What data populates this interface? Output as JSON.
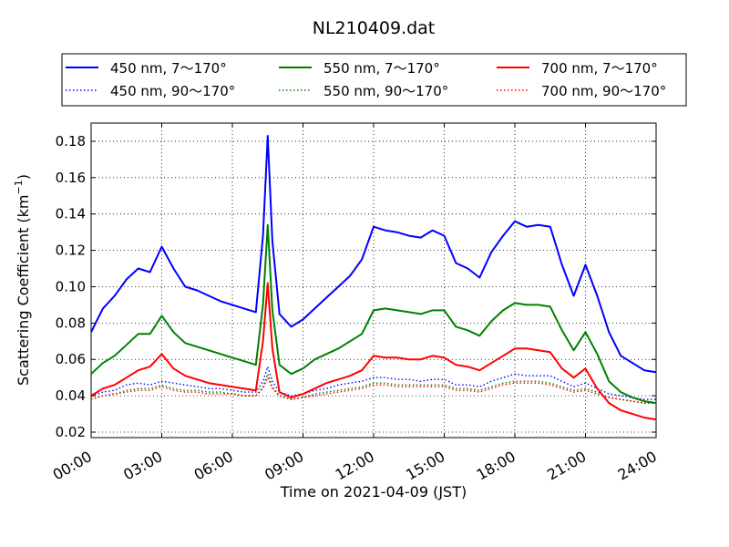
{
  "chart_data": {
    "type": "line",
    "title": "NL210409.dat",
    "xlabel": "Time on 2021-04-09 (JST)",
    "ylabel": "Scattering Coefficient (km",
    "ylabel_sup": "−1",
    "ylabel_close": ")",
    "xlim": [
      0,
      24
    ],
    "ylim": [
      0.017,
      0.19
    ],
    "xticks": [
      0,
      3,
      6,
      9,
      12,
      15,
      18,
      21,
      24
    ],
    "xtick_labels": [
      "00:00",
      "03:00",
      "06:00",
      "09:00",
      "12:00",
      "15:00",
      "18:00",
      "21:00",
      "24:00"
    ],
    "yticks": [
      0.02,
      0.04,
      0.06,
      0.08,
      0.1,
      0.12,
      0.14,
      0.16,
      0.18
    ],
    "ytick_labels": [
      "0.02",
      "0.04",
      "0.06",
      "0.08",
      "0.10",
      "0.12",
      "0.14",
      "0.16",
      "0.18"
    ],
    "grid": true,
    "legend_position": "top-center",
    "x": [
      0,
      0.5,
      1,
      1.5,
      2,
      2.5,
      3,
      3.5,
      4,
      4.5,
      5,
      5.5,
      6,
      6.5,
      7,
      7.3,
      7.5,
      7.7,
      8,
      8.5,
      9,
      9.5,
      10,
      10.5,
      11,
      11.5,
      12,
      12.5,
      13,
      13.5,
      14,
      14.5,
      15,
      15.5,
      16,
      16.5,
      17,
      17.5,
      18,
      18.5,
      19,
      19.5,
      20,
      20.5,
      21,
      21.5,
      22,
      22.5,
      23,
      23.5,
      24
    ],
    "series": [
      {
        "name": "450 nm, 7～170°",
        "color": "#0000ff",
        "style": "solid",
        "values": [
          0.075,
          0.088,
          0.095,
          0.104,
          0.11,
          0.108,
          0.122,
          0.11,
          0.1,
          0.098,
          0.095,
          0.092,
          0.09,
          0.088,
          0.086,
          0.128,
          0.183,
          0.125,
          0.085,
          0.078,
          0.082,
          0.088,
          0.094,
          0.1,
          0.106,
          0.115,
          0.133,
          0.131,
          0.13,
          0.128,
          0.127,
          0.131,
          0.128,
          0.113,
          0.11,
          0.105,
          0.119,
          0.128,
          0.136,
          0.133,
          0.134,
          0.133,
          0.112,
          0.095,
          0.112,
          0.095,
          0.075,
          0.062,
          0.058,
          0.054,
          0.053
        ]
      },
      {
        "name": "450 nm, 90～170°",
        "color": "#0000ff",
        "style": "dotted",
        "values": [
          0.04,
          0.042,
          0.043,
          0.046,
          0.047,
          0.046,
          0.048,
          0.047,
          0.046,
          0.045,
          0.044,
          0.044,
          0.043,
          0.042,
          0.042,
          0.048,
          0.056,
          0.048,
          0.042,
          0.04,
          0.041,
          0.043,
          0.044,
          0.046,
          0.047,
          0.048,
          0.05,
          0.05,
          0.049,
          0.049,
          0.048,
          0.049,
          0.049,
          0.046,
          0.046,
          0.045,
          0.048,
          0.05,
          0.052,
          0.051,
          0.051,
          0.051,
          0.048,
          0.045,
          0.047,
          0.044,
          0.041,
          0.04,
          0.039,
          0.038,
          0.038
        ]
      },
      {
        "name": "550 nm, 7～170°",
        "color": "#008000",
        "style": "solid",
        "values": [
          0.052,
          0.058,
          0.062,
          0.068,
          0.074,
          0.074,
          0.084,
          0.075,
          0.069,
          0.067,
          0.065,
          0.063,
          0.061,
          0.059,
          0.057,
          0.09,
          0.134,
          0.087,
          0.057,
          0.052,
          0.055,
          0.06,
          0.063,
          0.066,
          0.07,
          0.074,
          0.087,
          0.088,
          0.087,
          0.086,
          0.085,
          0.087,
          0.087,
          0.078,
          0.076,
          0.073,
          0.081,
          0.087,
          0.091,
          0.09,
          0.09,
          0.089,
          0.076,
          0.065,
          0.075,
          0.063,
          0.048,
          0.042,
          0.039,
          0.037,
          0.036
        ]
      },
      {
        "name": "550 nm, 90～170°",
        "color": "#008000",
        "style": "dotted",
        "values": [
          0.038,
          0.04,
          0.041,
          0.043,
          0.044,
          0.044,
          0.046,
          0.044,
          0.043,
          0.043,
          0.042,
          0.042,
          0.041,
          0.04,
          0.04,
          0.045,
          0.052,
          0.045,
          0.04,
          0.038,
          0.039,
          0.041,
          0.042,
          0.043,
          0.044,
          0.045,
          0.047,
          0.047,
          0.046,
          0.046,
          0.046,
          0.046,
          0.046,
          0.044,
          0.044,
          0.043,
          0.045,
          0.047,
          0.048,
          0.048,
          0.048,
          0.047,
          0.045,
          0.043,
          0.044,
          0.042,
          0.039,
          0.038,
          0.037,
          0.036,
          0.036
        ]
      },
      {
        "name": "700 nm, 7～170°",
        "color": "#ff0000",
        "style": "solid",
        "values": [
          0.04,
          0.044,
          0.046,
          0.05,
          0.054,
          0.056,
          0.063,
          0.055,
          0.051,
          0.049,
          0.047,
          0.046,
          0.045,
          0.044,
          0.043,
          0.07,
          0.102,
          0.066,
          0.042,
          0.039,
          0.041,
          0.044,
          0.047,
          0.049,
          0.051,
          0.054,
          0.062,
          0.061,
          0.061,
          0.06,
          0.06,
          0.062,
          0.061,
          0.057,
          0.056,
          0.054,
          0.058,
          0.062,
          0.066,
          0.066,
          0.065,
          0.064,
          0.055,
          0.05,
          0.055,
          0.044,
          0.036,
          0.032,
          0.03,
          0.028,
          0.027
        ]
      },
      {
        "name": "700 nm, 90～170°",
        "color": "#ff0000",
        "style": "dotted",
        "values": [
          0.038,
          0.04,
          0.041,
          0.042,
          0.043,
          0.043,
          0.045,
          0.043,
          0.042,
          0.042,
          0.041,
          0.041,
          0.041,
          0.04,
          0.04,
          0.044,
          0.05,
          0.044,
          0.04,
          0.038,
          0.039,
          0.04,
          0.041,
          0.042,
          0.043,
          0.044,
          0.046,
          0.046,
          0.045,
          0.045,
          0.045,
          0.045,
          0.045,
          0.043,
          0.043,
          0.042,
          0.044,
          0.046,
          0.047,
          0.047,
          0.047,
          0.046,
          0.044,
          0.042,
          0.043,
          0.041,
          0.039,
          0.038,
          0.037,
          0.036,
          0.036
        ]
      }
    ]
  }
}
